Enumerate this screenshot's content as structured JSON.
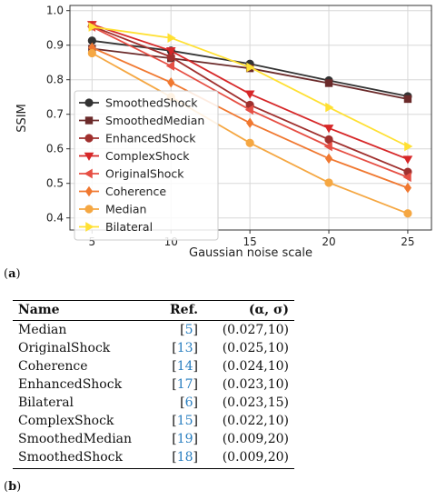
{
  "figure": {
    "label_a": "(a)",
    "label_b": "(b)"
  },
  "chart_data": {
    "type": "line",
    "xlabel": "Gaussian noise scale",
    "ylabel": "SSIM",
    "x": [
      5,
      10,
      15,
      20,
      25
    ],
    "xticks": [
      "5",
      "10",
      "15",
      "20",
      "25"
    ],
    "yticks": [
      "0.4",
      "0.5",
      "0.6",
      "0.7",
      "0.8",
      "0.9",
      "1.0"
    ],
    "xlim": [
      3.6,
      26.5
    ],
    "ylim": [
      0.365,
      1.015
    ],
    "grid": true,
    "legend_position": "left",
    "series": [
      {
        "name": "SmoothedShock",
        "color": "#333333",
        "marker": "circle",
        "values": [
          0.913,
          0.884,
          0.846,
          0.798,
          0.752
        ]
      },
      {
        "name": "SmoothedMedian",
        "color": "#6b2a2a",
        "marker": "square",
        "values": [
          0.89,
          0.862,
          0.833,
          0.79,
          0.744
        ]
      },
      {
        "name": "EnhancedShock",
        "color": "#a0302e",
        "marker": "circle",
        "values": [
          0.955,
          0.866,
          0.727,
          0.627,
          0.533
        ]
      },
      {
        "name": "ComplexShock",
        "color": "#d62728",
        "marker": "triangle-down",
        "values": [
          0.96,
          0.884,
          0.759,
          0.66,
          0.57
        ]
      },
      {
        "name": "OriginalShock",
        "color": "#e64f44",
        "marker": "triangle-left",
        "values": [
          0.953,
          0.84,
          0.713,
          0.607,
          0.518
        ]
      },
      {
        "name": "Coherence",
        "color": "#f07830",
        "marker": "diamond",
        "values": [
          0.893,
          0.792,
          0.675,
          0.572,
          0.487
        ]
      },
      {
        "name": "Median",
        "color": "#f5a742",
        "marker": "circle",
        "values": [
          0.877,
          0.75,
          0.617,
          0.502,
          0.413
        ]
      },
      {
        "name": "Bilateral",
        "color": "#ffe033",
        "marker": "triangle-right",
        "values": [
          0.953,
          0.921,
          0.836,
          0.72,
          0.607
        ]
      }
    ]
  },
  "table": {
    "headers": {
      "name": "Name",
      "ref": "Ref.",
      "params": "(α, σ)"
    },
    "rows": [
      {
        "name": "Median",
        "ref": "5",
        "params": "(0.027,10)"
      },
      {
        "name": "OriginalShock",
        "ref": "13",
        "params": "(0.025,10)"
      },
      {
        "name": "Coherence",
        "ref": "14",
        "params": "(0.024,10)"
      },
      {
        "name": "EnhancedShock",
        "ref": "17",
        "params": "(0.023,10)"
      },
      {
        "name": "Bilateral",
        "ref": "6",
        "params": "(0.023,15)"
      },
      {
        "name": "ComplexShock",
        "ref": "15",
        "params": "(0.022,10)"
      },
      {
        "name": "SmoothedMedian",
        "ref": "19",
        "params": "(0.009,20)"
      },
      {
        "name": "SmoothedShock",
        "ref": "18",
        "params": "(0.009,20)"
      }
    ]
  }
}
